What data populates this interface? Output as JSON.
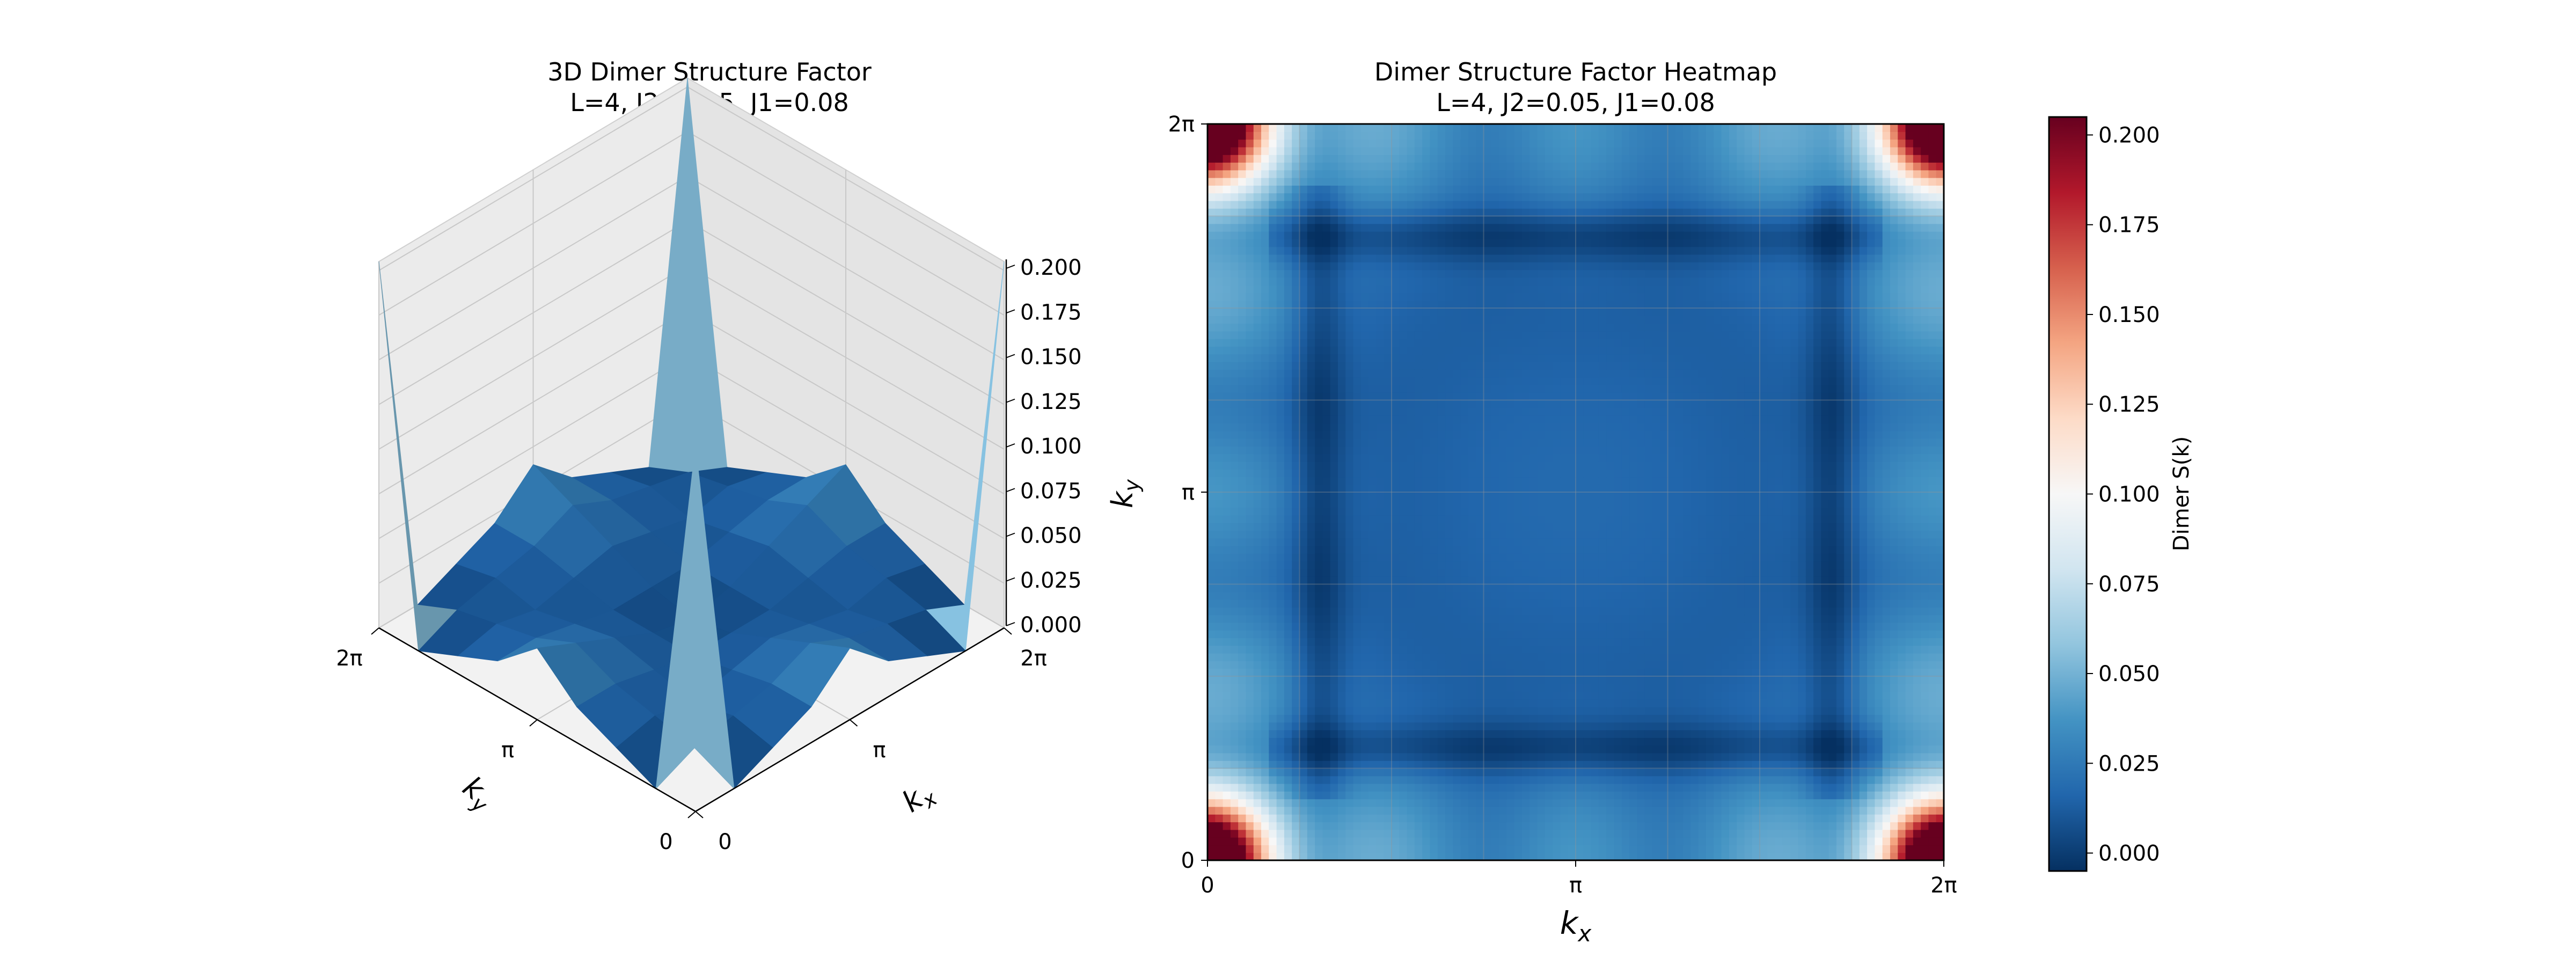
{
  "chart_data": [
    {
      "type": "surface",
      "title": "3D Dimer Structure Factor",
      "subtitle": "L=4, J2=0.05, J1=0.08",
      "xlabel": "kx",
      "ylabel": "ky",
      "zlim": [
        0,
        0.2
      ],
      "z_ticks": [
        "0.000",
        "0.025",
        "0.050",
        "0.075",
        "0.100",
        "0.125",
        "0.150",
        "0.175",
        "0.200"
      ],
      "x_ticks": [
        "0",
        "π",
        "2π"
      ],
      "y_ticks": [
        "0",
        "π",
        "2π"
      ],
      "grid": true,
      "colormap": "RdBu_r",
      "k_values": [
        0,
        0.785,
        1.571,
        2.356,
        3.142,
        3.927,
        4.712,
        5.498,
        6.283
      ],
      "z_values": [
        [
          0.205,
          0.0,
          0.01,
          0.02,
          0.04,
          0.02,
          0.01,
          0.0,
          0.205
        ],
        [
          0.0,
          0.01,
          0.015,
          0.02,
          0.03,
          0.02,
          0.015,
          0.01,
          0.0
        ],
        [
          0.01,
          0.015,
          0.01,
          0.015,
          0.02,
          0.015,
          0.01,
          0.015,
          0.01
        ],
        [
          0.02,
          0.02,
          0.015,
          0.01,
          0.01,
          0.01,
          0.015,
          0.02,
          0.02
        ],
        [
          0.04,
          0.03,
          0.02,
          0.01,
          0.005,
          0.01,
          0.02,
          0.03,
          0.04
        ],
        [
          0.02,
          0.02,
          0.015,
          0.01,
          0.01,
          0.01,
          0.015,
          0.02,
          0.02
        ],
        [
          0.01,
          0.015,
          0.01,
          0.015,
          0.02,
          0.015,
          0.01,
          0.015,
          0.01
        ],
        [
          0.0,
          0.01,
          0.015,
          0.02,
          0.03,
          0.02,
          0.015,
          0.01,
          0.0
        ],
        [
          0.205,
          0.0,
          0.01,
          0.02,
          0.04,
          0.02,
          0.01,
          0.0,
          0.205
        ]
      ]
    },
    {
      "type": "heatmap",
      "title": "Dimer Structure Factor Heatmap",
      "subtitle": "L=4, J2=0.05, J1=0.08",
      "xlabel": "kx",
      "ylabel": "ky",
      "xlim": [
        0,
        6.283
      ],
      "ylim": [
        0,
        6.283
      ],
      "x_ticks": [
        "0",
        "π",
        "2π"
      ],
      "y_ticks": [
        "0",
        "π",
        "2π"
      ],
      "grid": true,
      "colorbar_label": "Dimer S(k)",
      "colorbar_range": [
        -0.005,
        0.205
      ],
      "colorbar_ticks": [
        "0.000",
        "0.025",
        "0.050",
        "0.075",
        "0.100",
        "0.125",
        "0.150",
        "0.175",
        "0.200"
      ]
    }
  ]
}
